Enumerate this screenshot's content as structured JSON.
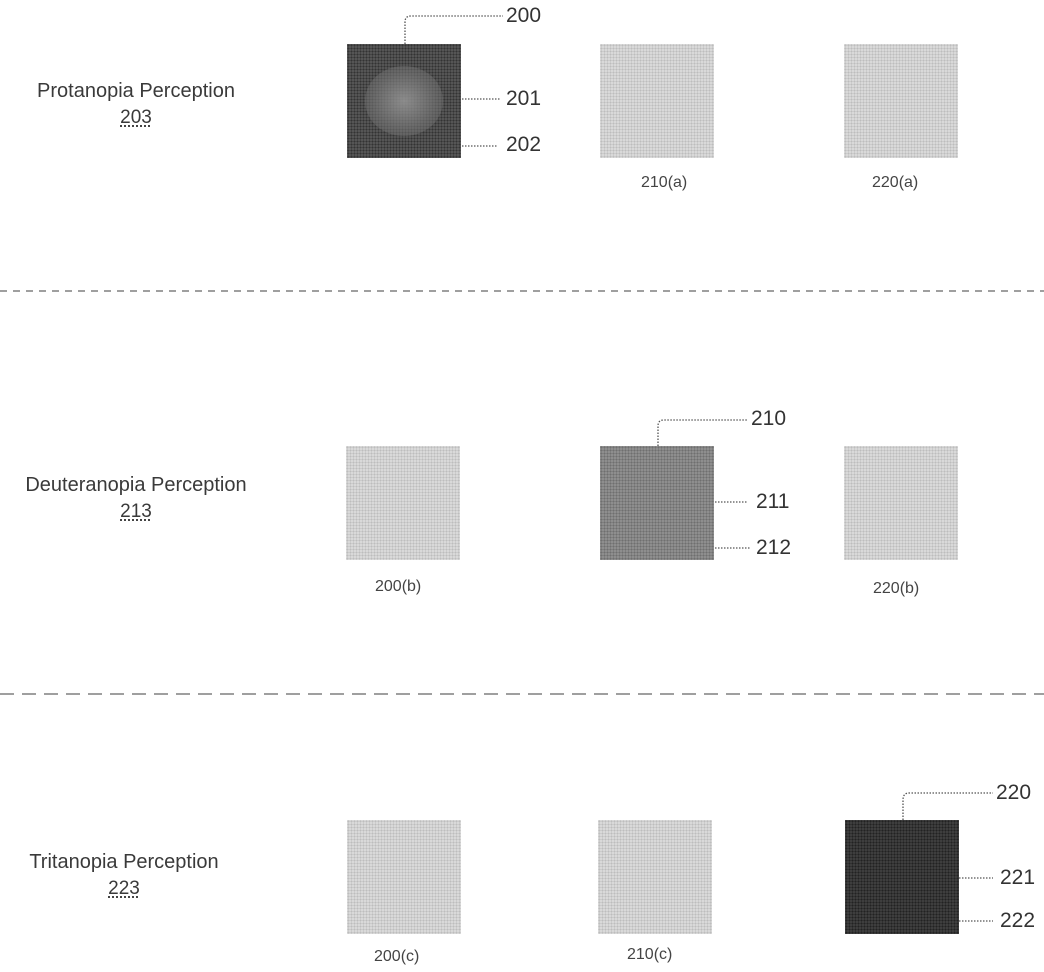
{
  "rows": [
    {
      "title": "Protanopia Perception",
      "ref": "203",
      "labels": {
        "outer": "200",
        "inner": "201",
        "border": "202"
      },
      "captions": {
        "c2": "210(a)",
        "c3": "220(a)"
      }
    },
    {
      "title": "Deuteranopia Perception",
      "ref": "213",
      "labels": {
        "outer": "210",
        "inner": "211",
        "border": "212"
      },
      "captions": {
        "c1": "200(b)",
        "c3": "220(b)"
      }
    },
    {
      "title": "Tritanopia Perception",
      "ref": "223",
      "labels": {
        "outer": "220",
        "inner": "221",
        "border": "222"
      },
      "captions": {
        "c1": "200(c)",
        "c2": "210(c)"
      }
    }
  ],
  "colors": {
    "light": "#d9d9d9",
    "medium": "#8e8e8e",
    "dark": "#3e3e3e",
    "line": "#555555"
  }
}
